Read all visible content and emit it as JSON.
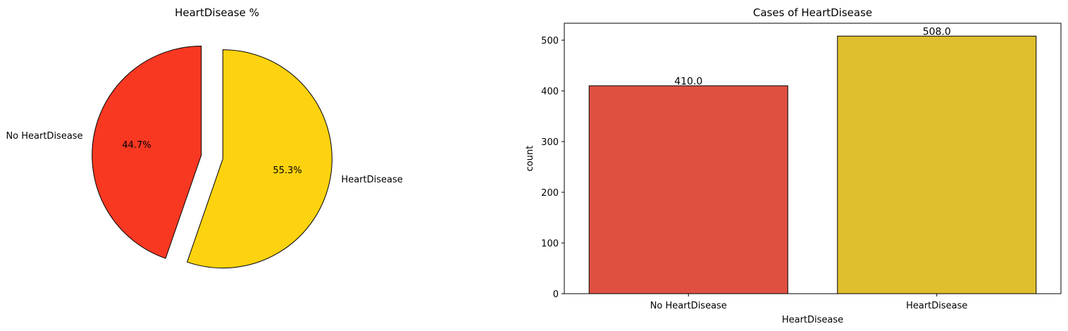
{
  "chart_data": [
    {
      "type": "pie",
      "title": "HeartDisease %",
      "labels": [
        "No HeartDisease",
        "HeartDisease"
      ],
      "values": [
        44.7,
        55.3
      ],
      "percent_labels": [
        "44.7%",
        "55.3%"
      ],
      "colors": [
        "#f93822",
        "#fdd20e"
      ],
      "exploded": true,
      "start_angle_deg": 90
    },
    {
      "type": "bar",
      "title": "Cases of HeartDisease",
      "categories": [
        "No HeartDisease",
        "HeartDisease"
      ],
      "values": [
        410,
        508
      ],
      "value_labels": [
        "410.0",
        "508.0"
      ],
      "colors": [
        "#e05041",
        "#dfbf2b"
      ],
      "xlabel": "HeartDisease",
      "ylabel": "count",
      "ylim": [
        0,
        533.4
      ],
      "yticks": [
        0,
        100,
        200,
        300,
        400,
        500
      ],
      "grid": false
    }
  ]
}
